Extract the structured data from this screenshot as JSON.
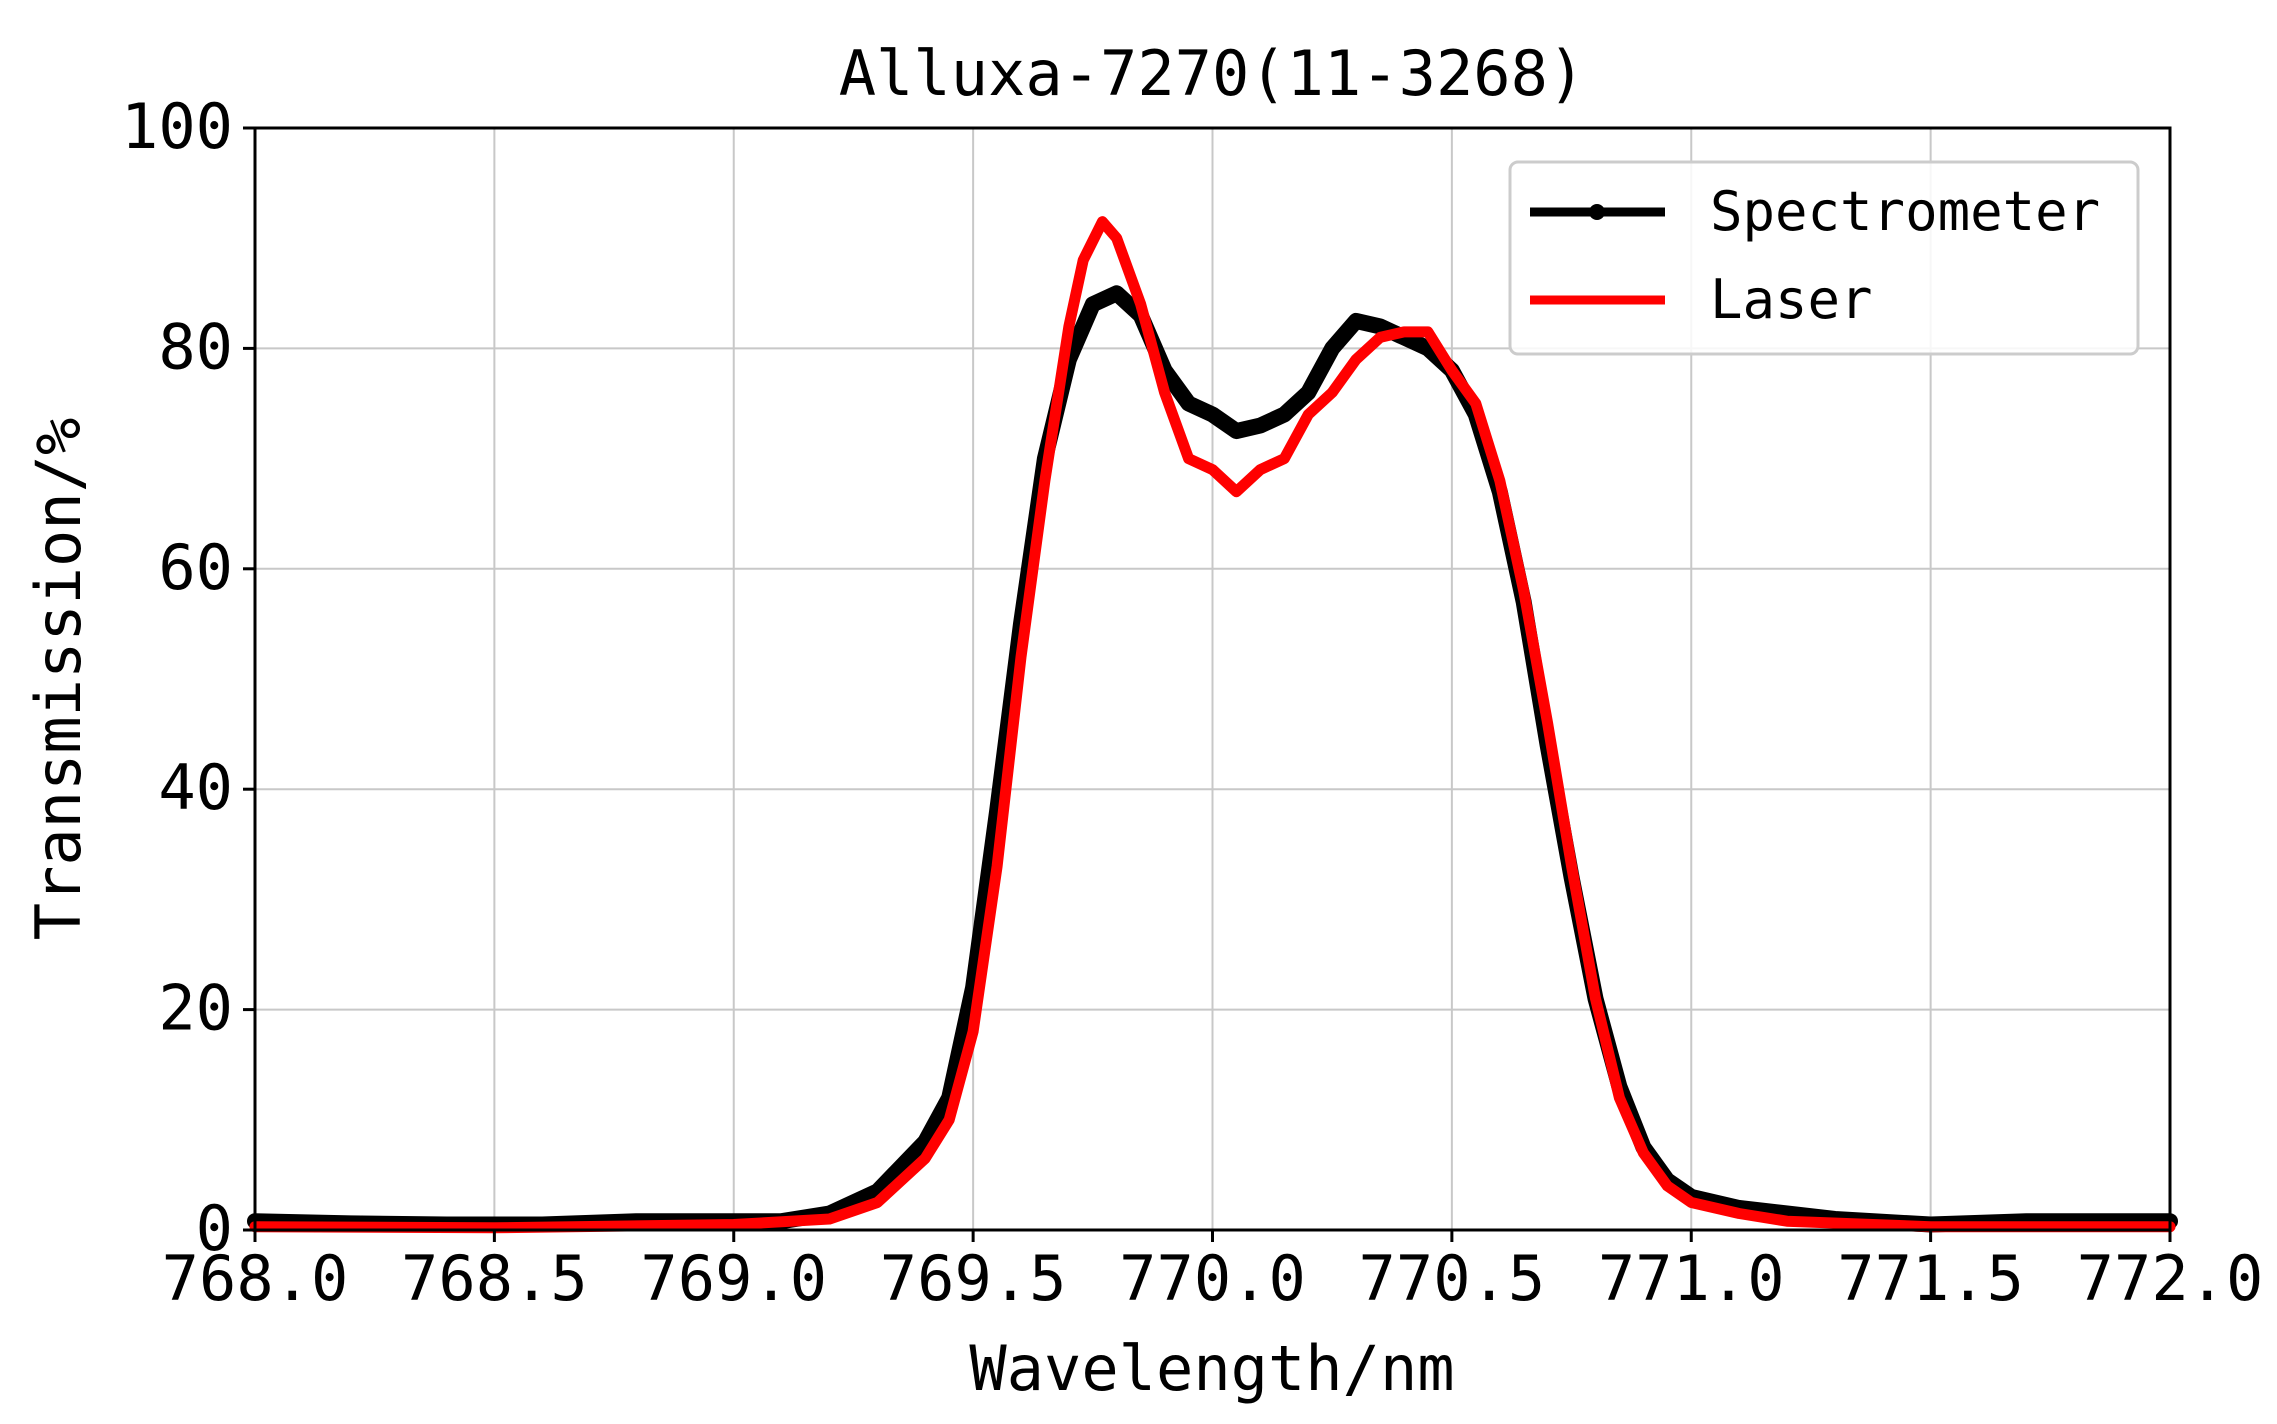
{
  "chart_data": {
    "type": "line",
    "title": "Alluxa-7270(11-3268)",
    "xlabel": "Wavelength/nm",
    "ylabel": "Transmission/%",
    "xlim": [
      768.0,
      772.0
    ],
    "ylim": [
      0,
      100
    ],
    "x_ticks": [
      "768.0",
      "768.5",
      "769.0",
      "769.5",
      "770.0",
      "770.5",
      "771.0",
      "771.5",
      "772.0"
    ],
    "y_ticks": [
      "0",
      "20",
      "40",
      "60",
      "80",
      "100"
    ],
    "grid": true,
    "legend_position": "top-right",
    "series": [
      {
        "name": "Spectrometer",
        "color": "#000000",
        "marker": "dot",
        "points": [
          [
            768.0,
            0.8
          ],
          [
            768.2,
            0.6
          ],
          [
            768.4,
            0.5
          ],
          [
            768.6,
            0.5
          ],
          [
            768.8,
            0.8
          ],
          [
            769.0,
            0.8
          ],
          [
            769.1,
            0.8
          ],
          [
            769.2,
            1.5
          ],
          [
            769.3,
            3.5
          ],
          [
            769.4,
            8
          ],
          [
            769.45,
            12
          ],
          [
            769.5,
            22
          ],
          [
            769.55,
            38
          ],
          [
            769.6,
            55
          ],
          [
            769.65,
            70
          ],
          [
            769.7,
            79
          ],
          [
            769.75,
            84
          ],
          [
            769.8,
            85
          ],
          [
            769.85,
            83
          ],
          [
            769.9,
            78
          ],
          [
            769.95,
            75
          ],
          [
            770.0,
            74
          ],
          [
            770.05,
            72.5
          ],
          [
            770.1,
            73
          ],
          [
            770.15,
            74
          ],
          [
            770.2,
            76
          ],
          [
            770.25,
            80
          ],
          [
            770.3,
            82.5
          ],
          [
            770.35,
            82
          ],
          [
            770.4,
            81
          ],
          [
            770.45,
            80
          ],
          [
            770.5,
            78
          ],
          [
            770.55,
            74
          ],
          [
            770.6,
            67
          ],
          [
            770.65,
            57
          ],
          [
            770.7,
            44
          ],
          [
            770.75,
            32
          ],
          [
            770.8,
            21
          ],
          [
            770.85,
            13
          ],
          [
            770.9,
            7.5
          ],
          [
            770.95,
            4.5
          ],
          [
            771.0,
            3
          ],
          [
            771.1,
            2
          ],
          [
            771.2,
            1.5
          ],
          [
            771.3,
            1.0
          ],
          [
            771.5,
            0.5
          ],
          [
            771.7,
            0.8
          ],
          [
            772.0,
            0.8
          ]
        ]
      },
      {
        "name": "Laser",
        "color": "#ff0000",
        "marker": "none",
        "points": [
          [
            768.0,
            0.3
          ],
          [
            768.5,
            0.2
          ],
          [
            769.0,
            0.5
          ],
          [
            769.2,
            1.0
          ],
          [
            769.3,
            2.5
          ],
          [
            769.4,
            6.5
          ],
          [
            769.45,
            10
          ],
          [
            769.5,
            18
          ],
          [
            769.55,
            33
          ],
          [
            769.6,
            52
          ],
          [
            769.65,
            68
          ],
          [
            769.7,
            82
          ],
          [
            769.73,
            88
          ],
          [
            769.77,
            91.5
          ],
          [
            769.8,
            90
          ],
          [
            769.85,
            84
          ],
          [
            769.9,
            76
          ],
          [
            769.95,
            70
          ],
          [
            770.0,
            69
          ],
          [
            770.05,
            67
          ],
          [
            770.1,
            69
          ],
          [
            770.15,
            70
          ],
          [
            770.2,
            74
          ],
          [
            770.25,
            76
          ],
          [
            770.3,
            79
          ],
          [
            770.35,
            81
          ],
          [
            770.4,
            81.5
          ],
          [
            770.45,
            81.5
          ],
          [
            770.5,
            78
          ],
          [
            770.55,
            75
          ],
          [
            770.6,
            68
          ],
          [
            770.65,
            58
          ],
          [
            770.7,
            46
          ],
          [
            770.75,
            33
          ],
          [
            770.8,
            21
          ],
          [
            770.85,
            12
          ],
          [
            770.9,
            7
          ],
          [
            770.95,
            4
          ],
          [
            771.0,
            2.5
          ],
          [
            771.1,
            1.5
          ],
          [
            771.2,
            0.8
          ],
          [
            771.5,
            0.3
          ],
          [
            772.0,
            0.3
          ]
        ]
      }
    ]
  }
}
